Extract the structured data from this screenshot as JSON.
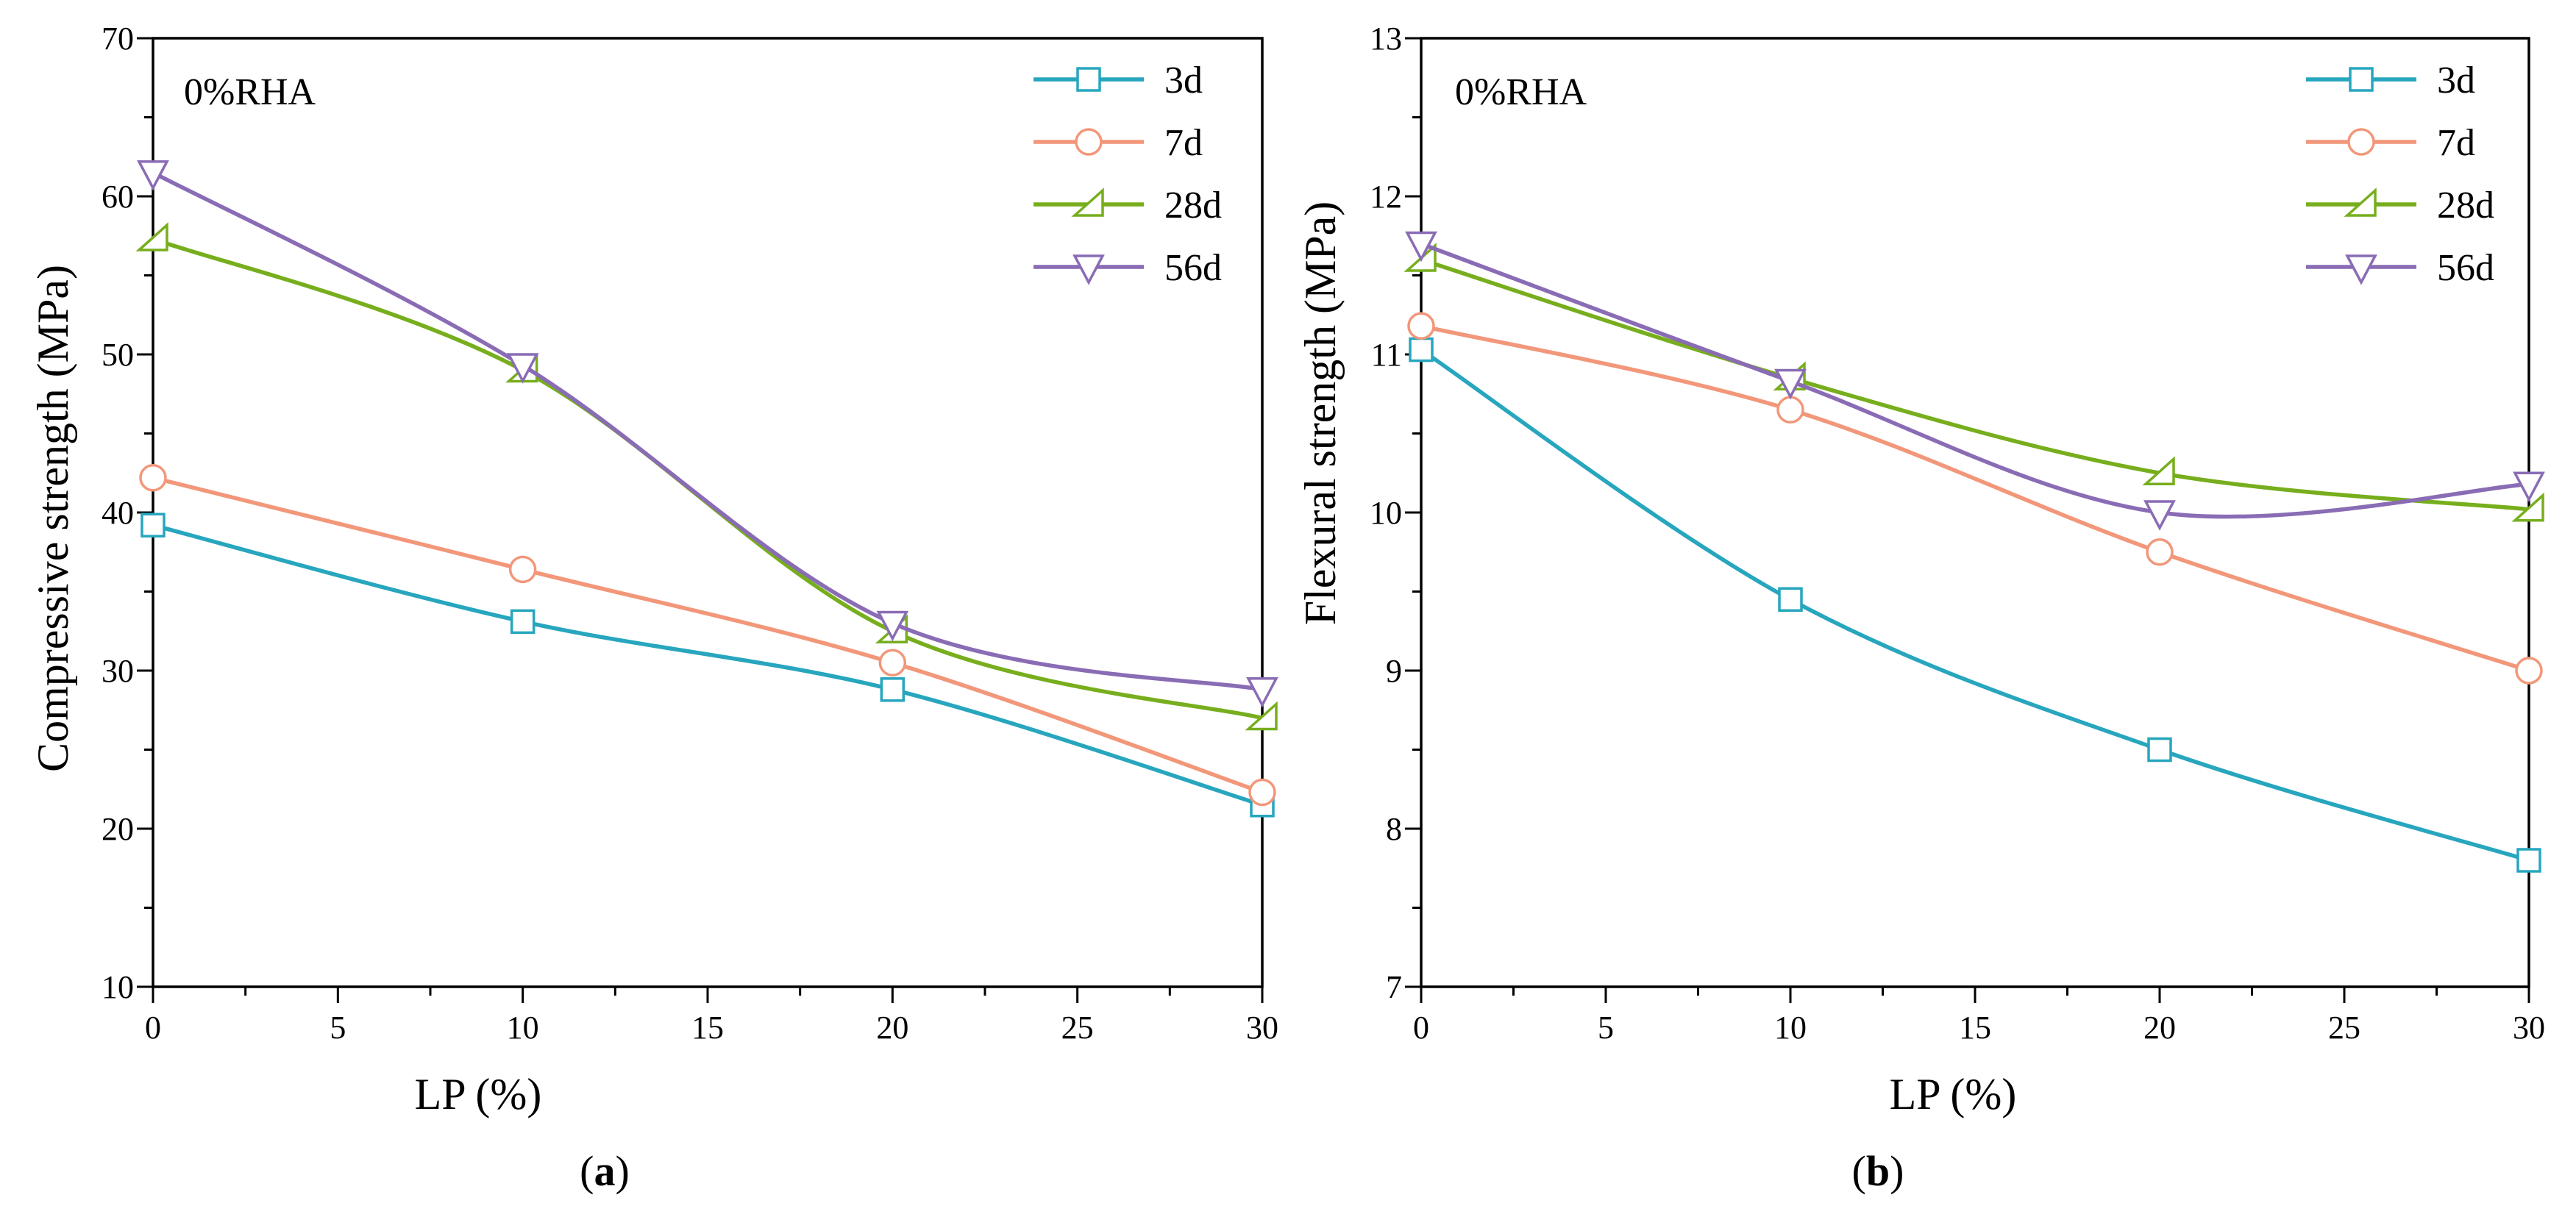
{
  "chart_data": [
    {
      "type": "line",
      "panel": "a",
      "panel_label": {
        "open": "(",
        "letter": "a",
        "close": ")"
      },
      "annotation": "0%RHA",
      "xlabel": "LP (%)",
      "ylabel": "Compressive strength (MPa)",
      "xlim": [
        0,
        30
      ],
      "ylim": [
        10,
        70
      ],
      "xticks": [
        0,
        5,
        10,
        15,
        20,
        25,
        30
      ],
      "yticks": [
        10,
        20,
        30,
        40,
        50,
        60,
        70
      ],
      "x": [
        0,
        10,
        20,
        30
      ],
      "legend_position": "top-right",
      "series": [
        {
          "name": "3d",
          "color": "#27A6BE",
          "marker": "square",
          "values": [
            39.2,
            33.1,
            28.8,
            21.5
          ]
        },
        {
          "name": "7d",
          "color": "#F2977A",
          "marker": "circle",
          "values": [
            42.2,
            36.4,
            30.5,
            22.3
          ]
        },
        {
          "name": "28d",
          "color": "#77AE1D",
          "marker": "right-triangle",
          "values": [
            57.3,
            49.0,
            32.5,
            27.0
          ]
        },
        {
          "name": "56d",
          "color": "#8A6CB5",
          "marker": "down-triangle",
          "values": [
            61.5,
            49.3,
            33.0,
            28.8
          ]
        }
      ]
    },
    {
      "type": "line",
      "panel": "b",
      "panel_label": {
        "open": "(",
        "letter": "b",
        "close": ")"
      },
      "annotation": "0%RHA",
      "xlabel": "LP (%)",
      "ylabel": "Flexural strength (MPa)",
      "xlim": [
        0,
        30
      ],
      "ylim": [
        7,
        13
      ],
      "xticks": [
        0,
        5,
        10,
        15,
        20,
        25,
        30
      ],
      "yticks": [
        7,
        8,
        9,
        10,
        11,
        12,
        13
      ],
      "x": [
        0,
        10,
        20,
        30
      ],
      "legend_position": "top-right",
      "series": [
        {
          "name": "3d",
          "color": "#27A6BE",
          "marker": "square",
          "values": [
            11.03,
            9.45,
            8.5,
            7.8
          ]
        },
        {
          "name": "7d",
          "color": "#F2977A",
          "marker": "circle",
          "values": [
            11.18,
            10.65,
            9.75,
            9.0
          ]
        },
        {
          "name": "28d",
          "color": "#77AE1D",
          "marker": "right-triangle",
          "values": [
            11.6,
            10.85,
            10.25,
            10.02
          ]
        },
        {
          "name": "56d",
          "color": "#8A6CB5",
          "marker": "down-triangle",
          "values": [
            11.7,
            10.83,
            10.0,
            10.18
          ]
        }
      ]
    }
  ]
}
